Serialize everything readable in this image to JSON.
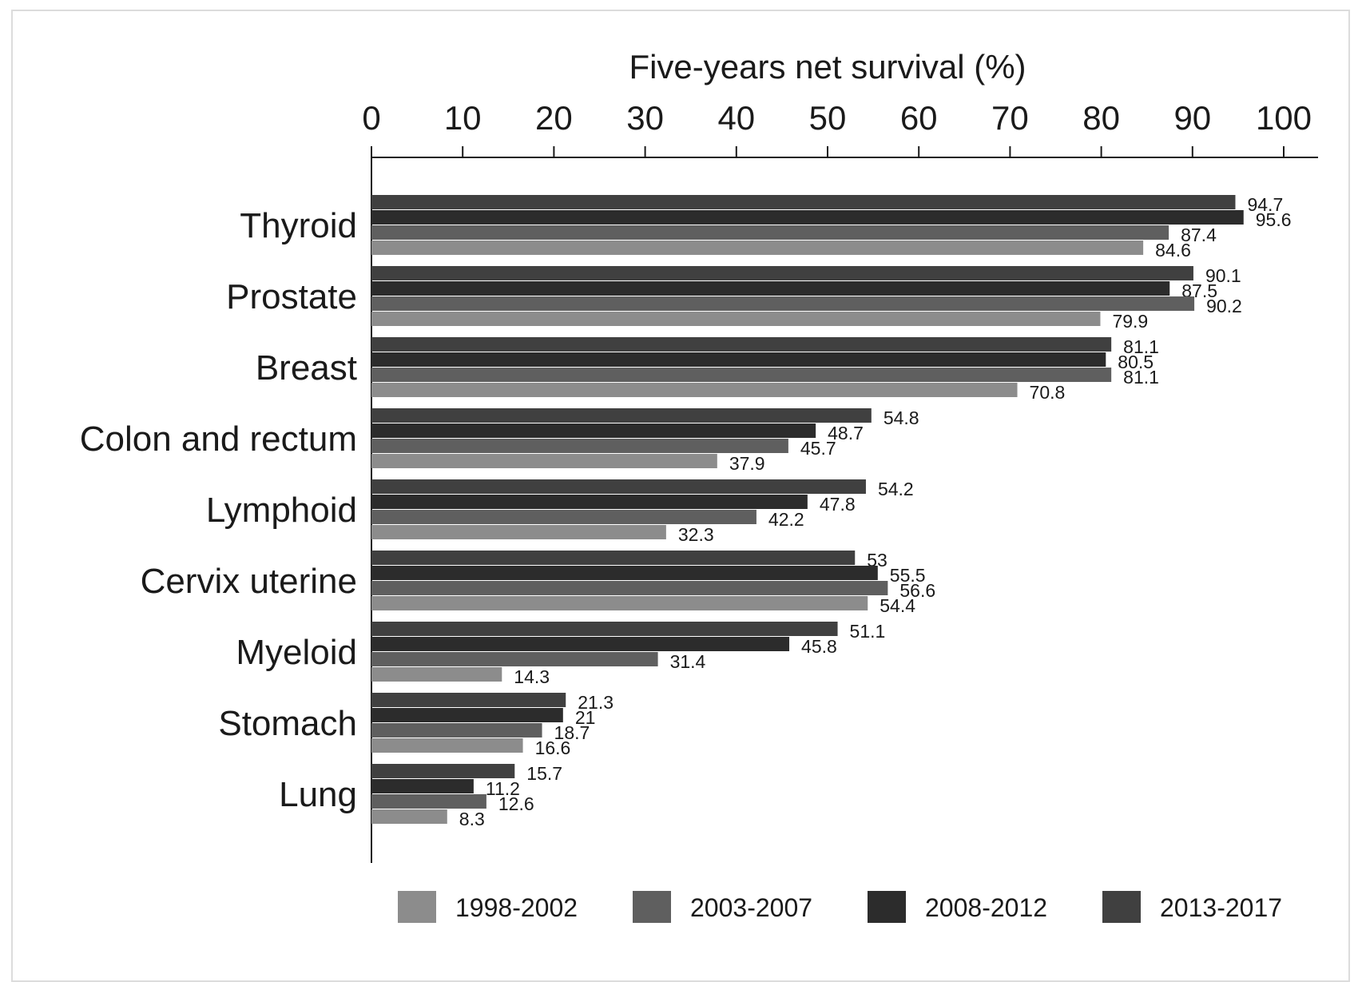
{
  "chart_data": {
    "type": "bar",
    "orientation": "horizontal",
    "xlabel": "Five-years net survival (%)",
    "xlim": [
      0,
      100
    ],
    "xticks": [
      0,
      10,
      20,
      30,
      40,
      50,
      60,
      70,
      80,
      90,
      100
    ],
    "x_axis_position": "top",
    "grid": false,
    "legend_position": "bottom",
    "categories": [
      "Thyroid",
      "Prostate",
      "Breast",
      "Colon and rectum",
      "Lymphoid",
      "Cervix uterine",
      "Myeloid",
      "Stomach",
      "Lung"
    ],
    "series": [
      {
        "name": "1998-2002",
        "color": "#8c8c8c",
        "values": [
          84.6,
          79.9,
          70.8,
          37.9,
          32.3,
          54.4,
          14.3,
          16.6,
          8.3
        ]
      },
      {
        "name": "2003-2007",
        "color": "#5f5f5f",
        "values": [
          87.4,
          90.2,
          81.1,
          45.7,
          42.2,
          56.6,
          31.4,
          18.7,
          12.6
        ]
      },
      {
        "name": "2008-2012",
        "color": "#2c2c2c",
        "values": [
          95.6,
          87.5,
          80.5,
          48.7,
          47.8,
          55.5,
          45.8,
          21,
          11.2
        ]
      },
      {
        "name": "2013-2017",
        "color": "#404040",
        "values": [
          94.7,
          90.1,
          81.1,
          54.8,
          54.2,
          53,
          51.1,
          21.3,
          15.7
        ]
      }
    ]
  }
}
